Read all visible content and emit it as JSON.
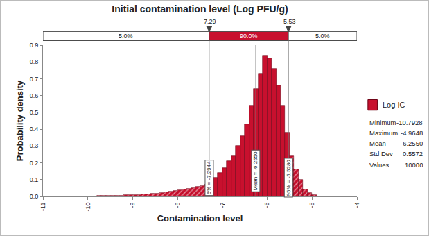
{
  "chart_data": {
    "type": "histogram",
    "title": "Initial contamination level (Log PFU/g)",
    "x_label": "Contamination level",
    "y_label": "Probability density",
    "bins": [
      -10.8,
      -10.7,
      -10.6,
      -10.5,
      -10.4,
      -10.3,
      -10.2,
      -10.1,
      -10.0,
      -9.9,
      -9.8,
      -9.7,
      -9.6,
      -9.5,
      -9.4,
      -9.3,
      -9.2,
      -9.1,
      -9.0,
      -8.9,
      -8.8,
      -8.7,
      -8.6,
      -8.5,
      -8.4,
      -8.3,
      -8.2,
      -8.1,
      -8.0,
      -7.9,
      -7.8,
      -7.7,
      -7.6,
      -7.5,
      -7.4,
      -7.3,
      -7.2,
      -7.1,
      -7.0,
      -6.9,
      -6.8,
      -6.7,
      -6.6,
      -6.5,
      -6.4,
      -6.3,
      -6.2,
      -6.1,
      -6.0,
      -5.9,
      -5.8,
      -5.7,
      -5.6,
      -5.5,
      -5.4,
      -5.3,
      -5.2,
      -5.1,
      -5.0,
      -4.9
    ],
    "series": [
      {
        "name": "Log IC",
        "color": "#c8102e",
        "values": [
          0.001,
          0.001,
          0,
          0.001,
          0.001,
          0.001,
          0.001,
          0.002,
          0.002,
          0.002,
          0.003,
          0.003,
          0.004,
          0.004,
          0.005,
          0.006,
          0.007,
          0.008,
          0.009,
          0.01,
          0.012,
          0.014,
          0.016,
          0.018,
          0.021,
          0.024,
          0.028,
          0.032,
          0.036,
          0.04,
          0.044,
          0.05,
          0.056,
          0.062,
          0.07,
          0.09,
          0.11,
          0.14,
          0.17,
          0.21,
          0.24,
          0.3,
          0.36,
          0.43,
          0.54,
          0.64,
          0.73,
          0.84,
          0.82,
          0.76,
          0.66,
          0.54,
          0.38,
          0.24,
          0.16,
          0.1,
          0.04,
          0.02,
          0.01
        ]
      }
    ],
    "xlim": [
      -11,
      -4
    ],
    "xticks": [
      -11,
      -10,
      -9,
      -8,
      -7,
      -6,
      -5,
      -4
    ],
    "ylim": [
      0,
      0.9
    ],
    "yticks": [
      {
        "value": 0,
        "label": "0.0"
      },
      0.1,
      0.2,
      0.3,
      0.4,
      0.5,
      0.6,
      0.7,
      0.8,
      0.9
    ],
    "grid": false,
    "legend": "right",
    "markers": [
      {
        "value": -7.2944,
        "label": "-7.29",
        "line_label": "5% = -7.2944"
      },
      {
        "value": -6.255,
        "line_label": "Mean = -6.2550"
      },
      {
        "value": -5.528,
        "label": "-5.53",
        "line_label": "95% = -5.5280"
      }
    ],
    "band_labels": [
      "5.0%",
      "90.0%",
      "5.0%"
    ],
    "statistics": [
      {
        "label": "Minimum",
        "value": -10.7928
      },
      {
        "label": "Maximum",
        "value": -4.9648
      },
      {
        "label": "Mean",
        "value": -6.255,
        "value_label": "-6.2550"
      },
      {
        "label": "Std Dev",
        "value": 0.5572
      },
      {
        "label": "Values",
        "value": 10000
      }
    ]
  }
}
